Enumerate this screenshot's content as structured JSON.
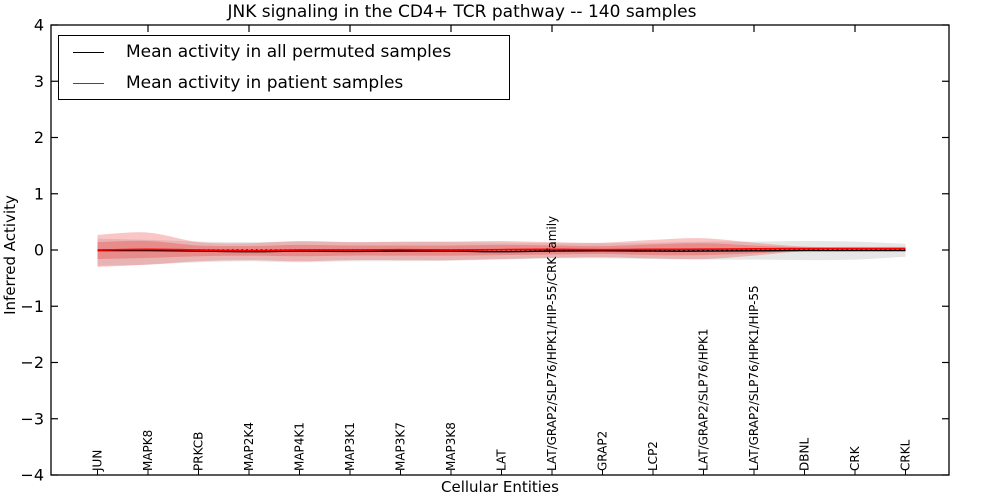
{
  "chart_data": {
    "type": "line",
    "title": "JNK signaling in the CD4+ TCR pathway -- 140 samples",
    "xlabel": "Cellular Entities",
    "ylabel": "Inferred Activity",
    "ylim": [
      -4,
      4
    ],
    "yticks": [
      4,
      3,
      2,
      1,
      0,
      -1,
      -2,
      -3,
      -4
    ],
    "grid": false,
    "legend_position": "upper left",
    "categories": [
      "JUN",
      "MAPK8",
      "PRKCB",
      "MAP2K4",
      "MAP4K1",
      "MAP3K1",
      "MAP3K7",
      "MAP3K8",
      "LAT",
      "LAT/GRAP2/SLP76/HPK1/HIP-55/CRK family",
      "GRAP2",
      "LCP2",
      "LAT/GRAP2/SLP76/HPK1",
      "LAT/GRAP2/SLP76/HPK1/HIP-55",
      "DBNL",
      "CRK",
      "CRKL"
    ],
    "series": [
      {
        "name": "Mean activity in all permuted samples",
        "color": "#000000",
        "values": [
          -0.01,
          -0.01,
          -0.02,
          -0.03,
          -0.02,
          -0.025,
          -0.02,
          -0.02,
          -0.03,
          -0.02,
          -0.015,
          -0.02,
          -0.02,
          -0.015,
          -0.01,
          -0.01,
          -0.01
        ]
      },
      {
        "name": "Mean activity in patient samples",
        "color": "#ff0000",
        "values": [
          0.0,
          0.01,
          0.0,
          -0.01,
          0.0,
          0.0,
          0.005,
          0.0,
          0.005,
          0.01,
          0.005,
          0.01,
          0.015,
          0.02,
          0.025,
          0.025,
          0.025
        ]
      }
    ],
    "bands": [
      {
        "name": "permuted-samples-spread",
        "color": "rgba(128,128,128,0.20)",
        "upper": [
          0.2,
          0.18,
          0.15,
          0.14,
          0.15,
          0.14,
          0.14,
          0.14,
          0.13,
          0.12,
          0.12,
          0.13,
          0.15,
          0.15,
          0.16,
          0.15,
          0.11
        ],
        "lower": [
          -0.28,
          -0.26,
          -0.22,
          -0.2,
          -0.22,
          -0.2,
          -0.2,
          -0.19,
          -0.17,
          -0.15,
          -0.15,
          -0.16,
          -0.17,
          -0.17,
          -0.18,
          -0.17,
          -0.12
        ]
      },
      {
        "name": "patient-samples-spread-outer",
        "color": "rgba(235,45,45,0.28)",
        "upper": [
          0.27,
          0.31,
          0.14,
          0.12,
          0.16,
          0.14,
          0.15,
          0.15,
          0.16,
          0.14,
          0.13,
          0.18,
          0.21,
          0.13,
          0.06,
          0.055,
          0.055
        ],
        "lower": [
          -0.3,
          -0.26,
          -0.2,
          -0.18,
          -0.2,
          -0.18,
          -0.18,
          -0.18,
          -0.16,
          -0.14,
          -0.13,
          -0.15,
          -0.16,
          -0.1,
          -0.02,
          -0.015,
          -0.015
        ]
      },
      {
        "name": "patient-samples-spread-inner",
        "color": "rgba(235,45,45,0.30)",
        "upper": [
          0.14,
          0.16,
          0.08,
          0.07,
          0.09,
          0.08,
          0.08,
          0.08,
          0.09,
          0.08,
          0.07,
          0.1,
          0.12,
          0.08,
          0.045,
          0.04,
          0.04
        ],
        "lower": [
          -0.16,
          -0.14,
          -0.11,
          -0.1,
          -0.11,
          -0.1,
          -0.1,
          -0.1,
          -0.09,
          -0.08,
          -0.07,
          -0.09,
          -0.09,
          -0.06,
          -0.01,
          -0.01,
          -0.01
        ]
      }
    ],
    "zero_line": {
      "style": "dotted",
      "color": "#000000",
      "y": 0
    }
  }
}
